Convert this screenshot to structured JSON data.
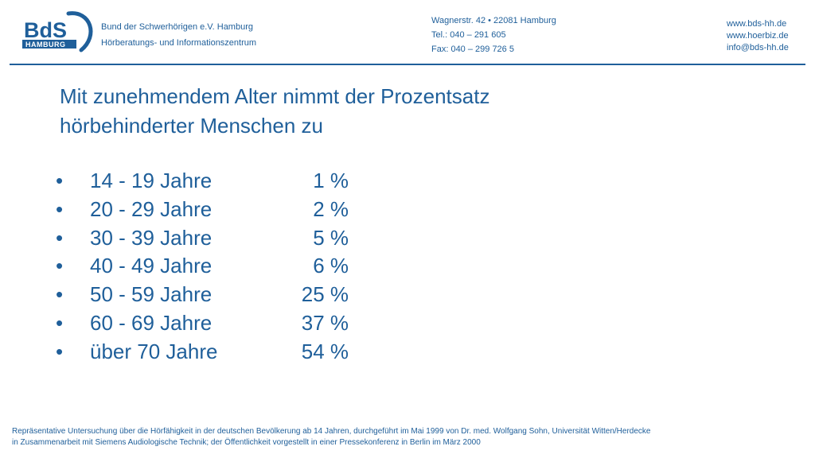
{
  "header": {
    "logo_text": "BdS",
    "logo_sub": "HAMBURG",
    "org_name": "Bund der Schwerhörigen e.V. Hamburg",
    "org_sub": "Hörberatungs- und Informationszentrum",
    "address": "Wagnerstr. 42 • 22081 Hamburg",
    "tel": "Tel.: 040 – 291 605",
    "fax": "Fax: 040 – 299 726 5",
    "web1": "www.bds-hh.de",
    "web2": "www.hoerbiz.de",
    "email": "info@bds-hh.de"
  },
  "title_line1": "Mit zunehmendem Alter nimmt der Prozentsatz",
  "title_line2": "hörbehinderter Menschen zu",
  "bullet": "•",
  "stats": [
    {
      "age": "14 - 19 Jahre",
      "pct": "1 %"
    },
    {
      "age": "20 - 29 Jahre",
      "pct": "2 %"
    },
    {
      "age": "30 - 39 Jahre",
      "pct": "5 %"
    },
    {
      "age": "40 - 49 Jahre",
      "pct": "6 %"
    },
    {
      "age": "50 - 59 Jahre",
      "pct": "25 %"
    },
    {
      "age": "60 - 69 Jahre",
      "pct": "37 %"
    },
    {
      "age": "über 70 Jahre",
      "pct": "54 %"
    }
  ],
  "footer_line1": "Repräsentative Untersuchung über die Hörfähigkeit in der deutschen Bevölkerung ab 14 Jahren, durchgeführt im Mai 1999 von Dr. med. Wolfgang Sohn, Universität Witten/Herdecke",
  "footer_line2": "in Zusammenarbeit mit Siemens Audiologische Technik; der Öffentlichkeit vorgestellt in einer Pressekonferenz in Berlin im März 2000",
  "colors": {
    "brand_blue": "#1f5f9a"
  }
}
